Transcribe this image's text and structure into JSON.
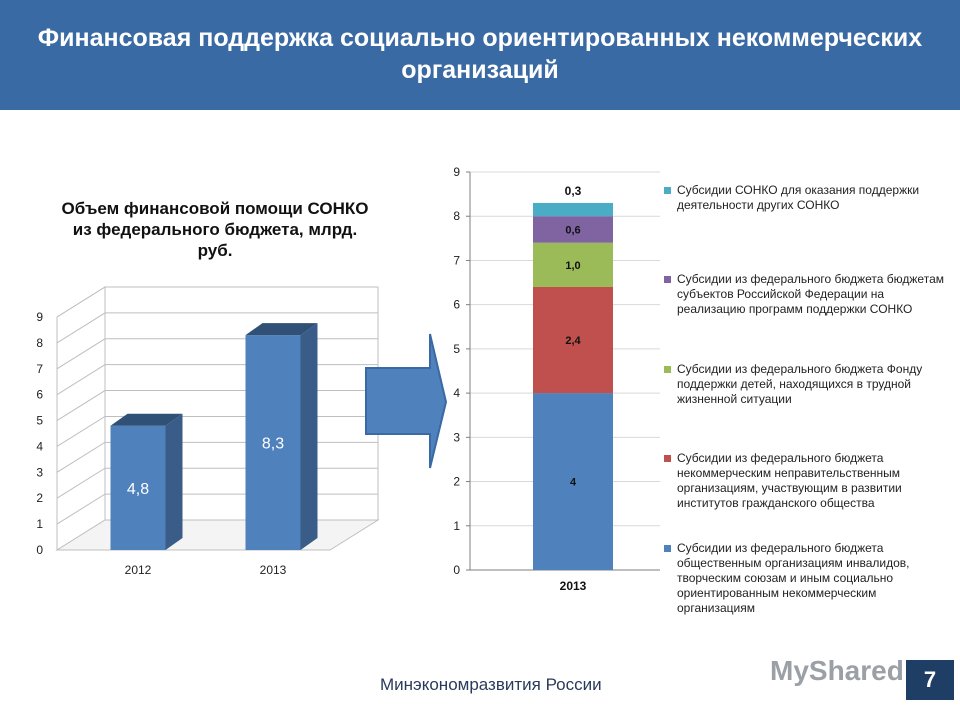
{
  "header": {
    "title": "Финансовая поддержка социально ориентированных некоммерческих организаций"
  },
  "footer": {
    "org": "Минэкономразвития России",
    "watermark": "MyShared",
    "page_number": "7"
  },
  "colors": {
    "header_bg": "#3a6aa3",
    "bar_blue": "#4f81bd",
    "red": "#c0504d",
    "green": "#9bbb59",
    "purple": "#8064a2",
    "cyan": "#4bacc6"
  },
  "icons": {
    "arrow": "right-arrow-icon"
  },
  "chart_data": [
    {
      "type": "bar",
      "title": "Объем финансовой помощи СОНКО из федерального бюджета, млрд. руб.",
      "categories": [
        "2012",
        "2013"
      ],
      "values": [
        4.8,
        8.3
      ],
      "data_labels": [
        "4,8",
        "8,3"
      ],
      "ylim": [
        0,
        9
      ],
      "y_ticks": [
        "0",
        "1",
        "2",
        "3",
        "4",
        "5",
        "6",
        "7",
        "8",
        "9"
      ],
      "grid": true,
      "style": "3d"
    },
    {
      "type": "bar",
      "stacked": true,
      "categories": [
        "2013"
      ],
      "ylim": [
        0,
        9
      ],
      "y_ticks": [
        "0",
        "1",
        "2",
        "3",
        "4",
        "5",
        "6",
        "7",
        "8",
        "9"
      ],
      "grid": true,
      "legend_position": "right",
      "series": [
        {
          "name": "Субсидии из федерального бюджета общественным организациям инвалидов, творческим союзам и иным социально ориентированным некоммерческим организациям",
          "values": [
            4
          ],
          "label": "4",
          "color": "#4f81bd"
        },
        {
          "name": "Субсидии из федерального бюджета некоммерческим неправительственным организациям, участвующим в развитии институтов гражданского общества",
          "values": [
            2.4
          ],
          "label": "2,4",
          "color": "#c0504d"
        },
        {
          "name": "Субсидии из федерального бюджета Фонду поддержки детей, находящихся в трудной жизненной ситуации",
          "values": [
            1.0
          ],
          "label": "1,0",
          "color": "#9bbb59"
        },
        {
          "name": "Субсидии из федерального бюджета бюджетам субъектов Российской Федерации на реализацию программ поддержки СОНКО",
          "values": [
            0.6
          ],
          "label": "0,6",
          "color": "#8064a2"
        },
        {
          "name": "Субсидии СОНКО для оказания поддержки деятельности других СОНКО",
          "values": [
            0.3
          ],
          "label": "0,3",
          "color": "#4bacc6"
        }
      ]
    }
  ]
}
